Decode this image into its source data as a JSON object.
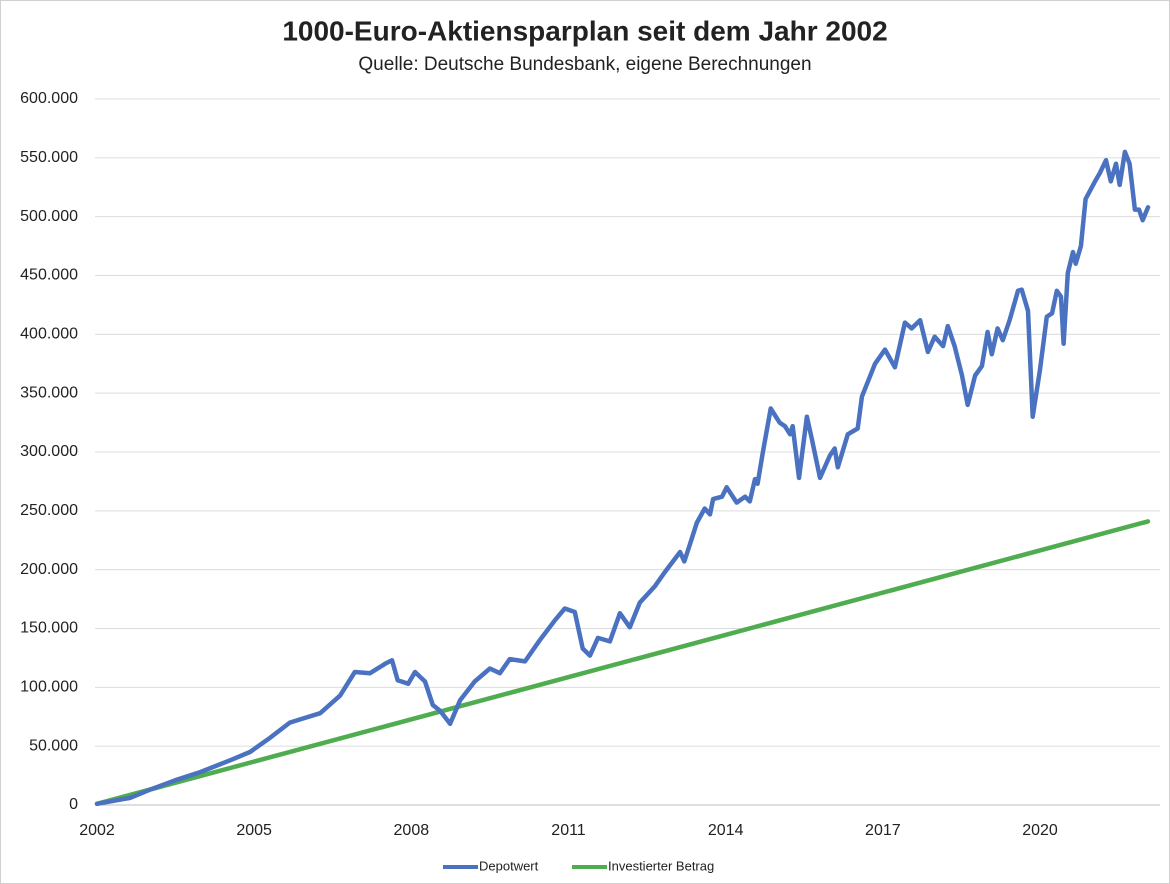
{
  "chart_data": {
    "type": "line",
    "title": "1000-Euro-Aktiensparplan seit dem Jahr 2002",
    "subtitle": "Quelle: Deutsche Bundesbank, eigene Berechnungen",
    "xlim": [
      2002,
      2022.29
    ],
    "xticks": [
      2002,
      2005,
      2008,
      2011,
      2014,
      2017,
      2020
    ],
    "ylim": [
      0,
      600000
    ],
    "yticks": [
      0,
      {
        "value": 50000,
        "label": "50.000"
      },
      {
        "value": 100000,
        "label": "100.000"
      },
      {
        "value": 150000,
        "label": "150.000"
      },
      {
        "value": 200000,
        "label": "200.000"
      },
      {
        "value": 250000,
        "label": "250.000"
      },
      {
        "value": 300000,
        "label": "300.000"
      },
      {
        "value": 350000,
        "label": "350.000"
      },
      {
        "value": 400000,
        "label": "400.000"
      },
      {
        "value": 450000,
        "label": "450.000"
      },
      {
        "value": 500000,
        "label": "500.000"
      },
      {
        "value": 550000,
        "label": "550.000"
      },
      {
        "value": 600000,
        "label": "600.000"
      }
    ],
    "grid": true,
    "legend": "bottom",
    "series": [
      {
        "name": "Depotwert",
        "color": "#4a72c0",
        "x": [
          2002.0,
          2002.63,
          2003.01,
          2003.49,
          2003.97,
          2004.54,
          2004.92,
          2005.3,
          2005.68,
          2005.97,
          2006.26,
          2006.64,
          2006.92,
          2007.21,
          2007.5,
          2007.63,
          2007.74,
          2007.94,
          2008.07,
          2008.26,
          2008.41,
          2008.55,
          2008.74,
          2008.93,
          2009.21,
          2009.5,
          2009.69,
          2009.88,
          2010.17,
          2010.45,
          2010.74,
          2010.93,
          2011.12,
          2011.27,
          2011.41,
          2011.56,
          2011.79,
          2011.98,
          2012.17,
          2012.36,
          2012.65,
          2012.84,
          2013.13,
          2013.21,
          2013.32,
          2013.45,
          2013.6,
          2013.7,
          2013.76,
          2013.93,
          2014.02,
          2014.21,
          2014.37,
          2014.46,
          2014.56,
          2014.61,
          2014.71,
          2014.86,
          2015.03,
          2015.13,
          2015.23,
          2015.28,
          2015.4,
          2015.55,
          2015.65,
          2015.8,
          2015.99,
          2016.08,
          2016.14,
          2016.33,
          2016.52,
          2016.6,
          2016.85,
          2017.04,
          2017.23,
          2017.42,
          2017.55,
          2017.71,
          2017.86,
          2017.99,
          2018.15,
          2018.24,
          2018.37,
          2018.51,
          2018.62,
          2018.76,
          2018.89,
          2019.0,
          2019.08,
          2019.19,
          2019.29,
          2019.42,
          2019.58,
          2019.65,
          2019.77,
          2019.86,
          2020.0,
          2020.13,
          2020.23,
          2020.32,
          2020.4,
          2020.45,
          2020.53,
          2020.63,
          2020.68,
          2020.78,
          2020.87,
          2021.05,
          2021.14,
          2021.26,
          2021.35,
          2021.45,
          2021.52,
          2021.62,
          2021.71,
          2021.81,
          2021.89,
          2021.96,
          2022.06
        ],
        "values": [
          1000,
          6000,
          13000,
          21000,
          28000,
          38000,
          45000,
          57000,
          70000,
          74000,
          78000,
          93000,
          113000,
          112000,
          120000,
          123000,
          106000,
          103000,
          113000,
          105000,
          85000,
          80000,
          69000,
          89000,
          105000,
          116000,
          112000,
          124000,
          122000,
          140000,
          157000,
          167000,
          164000,
          133000,
          127000,
          142000,
          139000,
          163000,
          151000,
          172000,
          186000,
          198000,
          215000,
          207000,
          222000,
          240000,
          252000,
          247000,
          260000,
          262000,
          270000,
          257000,
          262000,
          258000,
          277000,
          273000,
          300000,
          337000,
          325000,
          322000,
          315000,
          322000,
          278000,
          330000,
          310000,
          278000,
          297000,
          303000,
          287000,
          315000,
          320000,
          347000,
          375000,
          387000,
          372000,
          410000,
          405000,
          412000,
          385000,
          398000,
          390000,
          407000,
          390000,
          365000,
          340000,
          365000,
          373000,
          402000,
          383000,
          405000,
          395000,
          412000,
          437000,
          438000,
          420000,
          330000,
          370000,
          415000,
          418000,
          437000,
          432000,
          392000,
          452000,
          470000,
          460000,
          475000,
          515000,
          530000,
          537000,
          548000,
          530000,
          545000,
          527000,
          555000,
          545000,
          506000,
          506000,
          497000,
          508000
        ]
      },
      {
        "name": "Investierter Betrag",
        "color": "#4fad4f",
        "x": [
          2002.0,
          2022.06
        ],
        "values": [
          1000,
          241000
        ]
      }
    ]
  }
}
